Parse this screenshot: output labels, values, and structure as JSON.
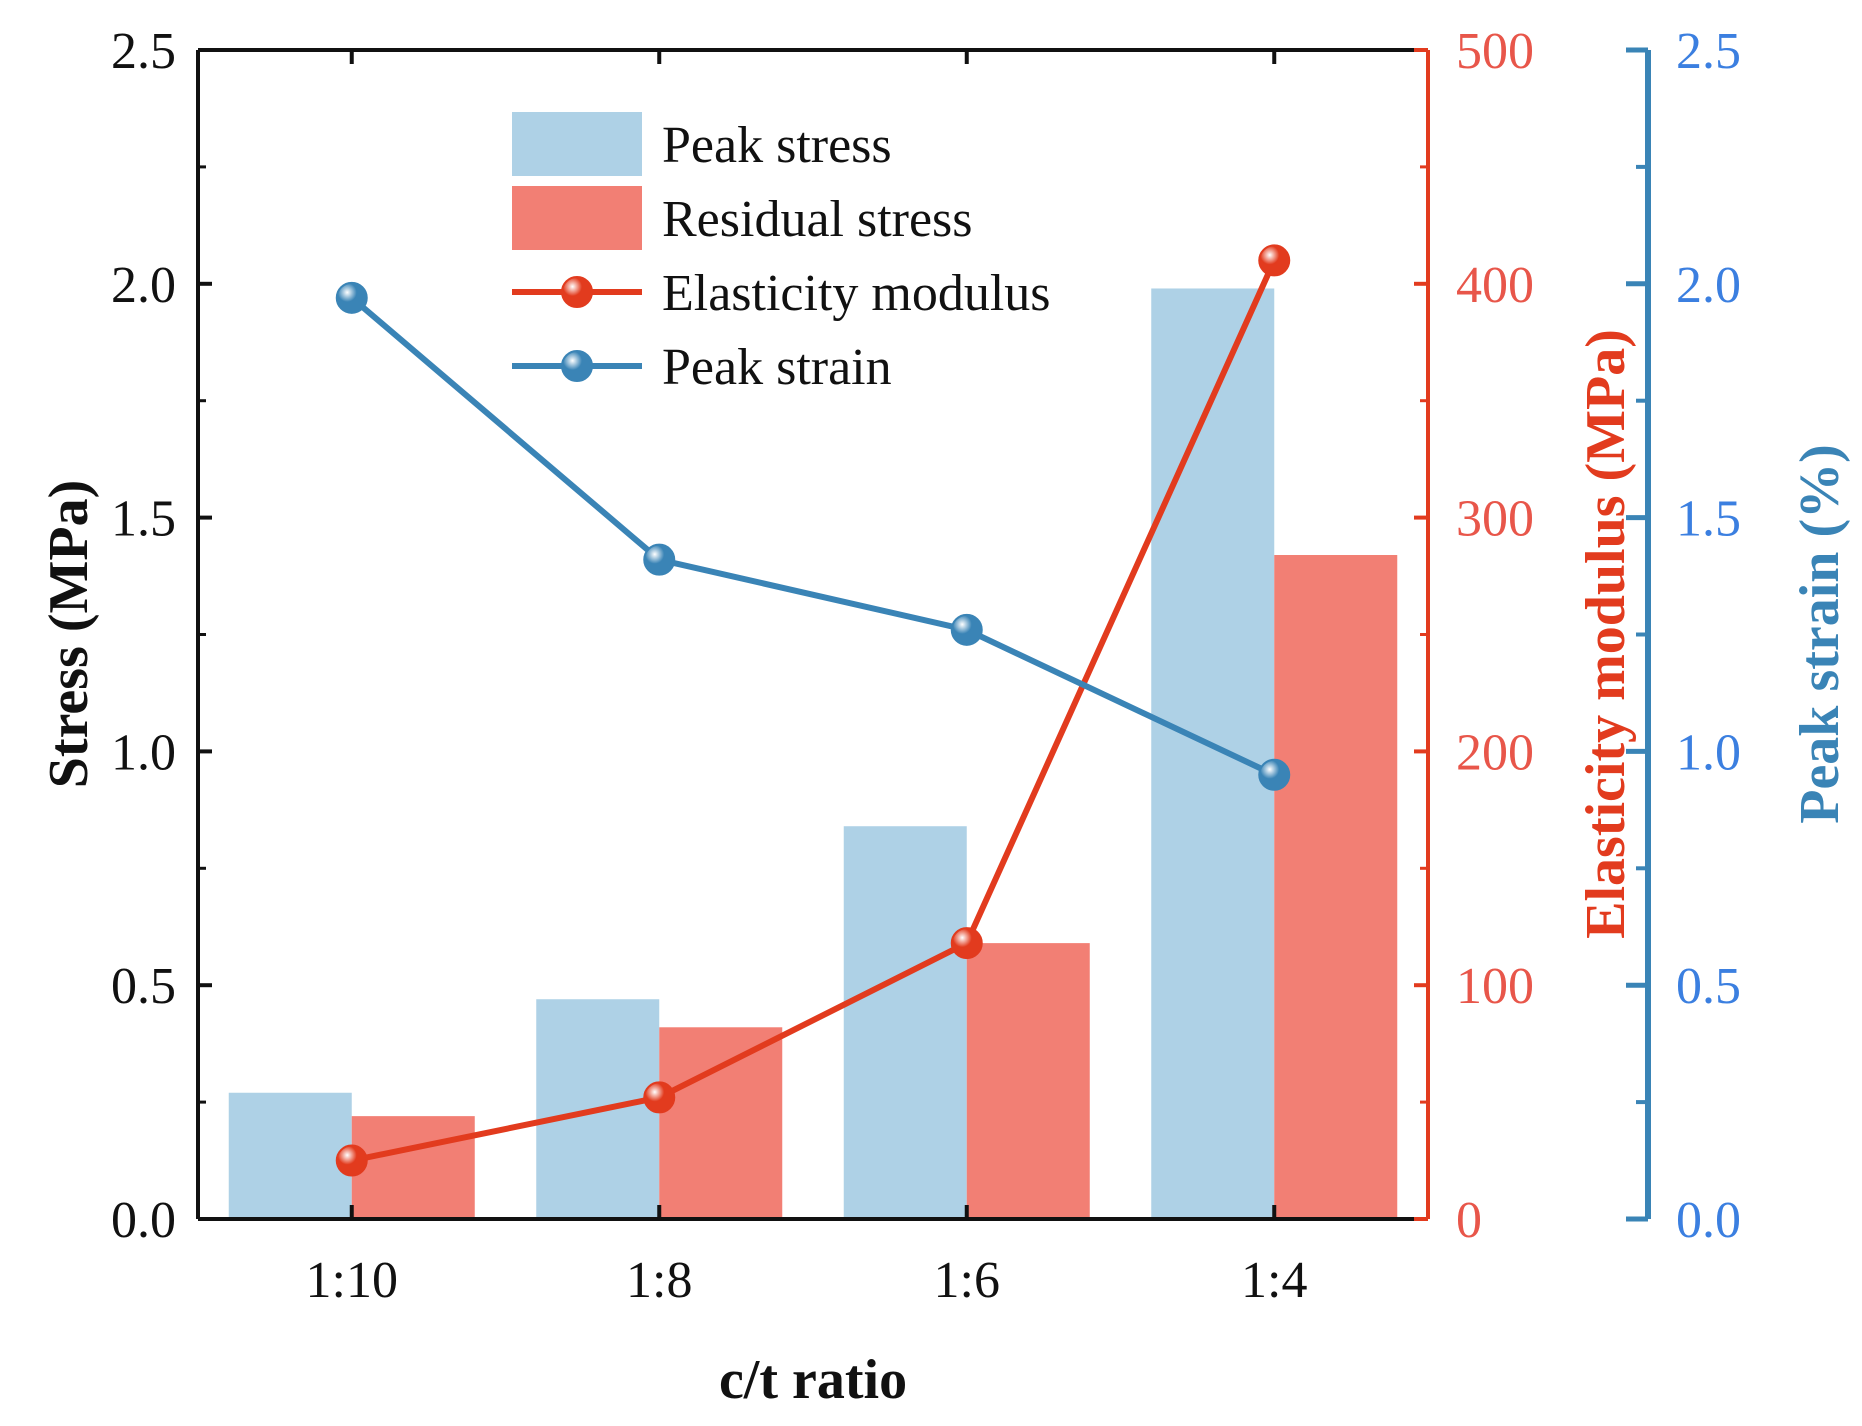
{
  "chart_data": {
    "type": "bar",
    "categories": [
      "1:10",
      "1:8",
      "1:6",
      "1:4"
    ],
    "xlabel": "c/t ratio",
    "series": [
      {
        "name": "Peak stress",
        "kind": "bar",
        "axis": "left",
        "color": "#aed1e6",
        "values": [
          0.27,
          0.47,
          0.84,
          1.99
        ]
      },
      {
        "name": "Residual stress",
        "kind": "bar",
        "axis": "left",
        "color": "#f27f74",
        "values": [
          0.22,
          0.41,
          0.59,
          1.42
        ]
      },
      {
        "name": "Elasticity modulus",
        "kind": "line",
        "axis": "right1",
        "color": "#e23b1e",
        "values": [
          25,
          52,
          118,
          410
        ]
      },
      {
        "name": "Peak strain",
        "kind": "line",
        "axis": "right2",
        "color": "#3a84b6",
        "values": [
          1.97,
          1.41,
          1.26,
          0.95
        ]
      }
    ],
    "axes": {
      "left": {
        "label": "Stress (MPa)",
        "range": [
          0,
          2.5
        ],
        "ticks": [
          "0.0",
          "0.5",
          "1.0",
          "1.5",
          "2.0",
          "2.5"
        ],
        "color": "#111111",
        "label_color": "#111111"
      },
      "right1": {
        "label": "Elasticity modulus (MPa)",
        "range": [
          0,
          500
        ],
        "ticks": [
          "0",
          "100",
          "200",
          "300",
          "400",
          "500"
        ],
        "color": "#e23b1e",
        "label_color": "#e23b1e",
        "tick_label_color": "#e8564a"
      },
      "right2": {
        "label": "Peak strain (%)",
        "range": [
          0,
          2.5
        ],
        "ticks": [
          "0.0",
          "0.5",
          "1.0",
          "1.5",
          "2.0",
          "2.5"
        ],
        "color": "#3a84b6",
        "label_color": "#3a84b6",
        "tick_label_color": "#3b7fe0"
      }
    },
    "legend": {
      "placement": "top-center",
      "entries": [
        "Peak stress",
        "Residual stress",
        "Elasticity modulus",
        "Peak strain"
      ]
    }
  }
}
